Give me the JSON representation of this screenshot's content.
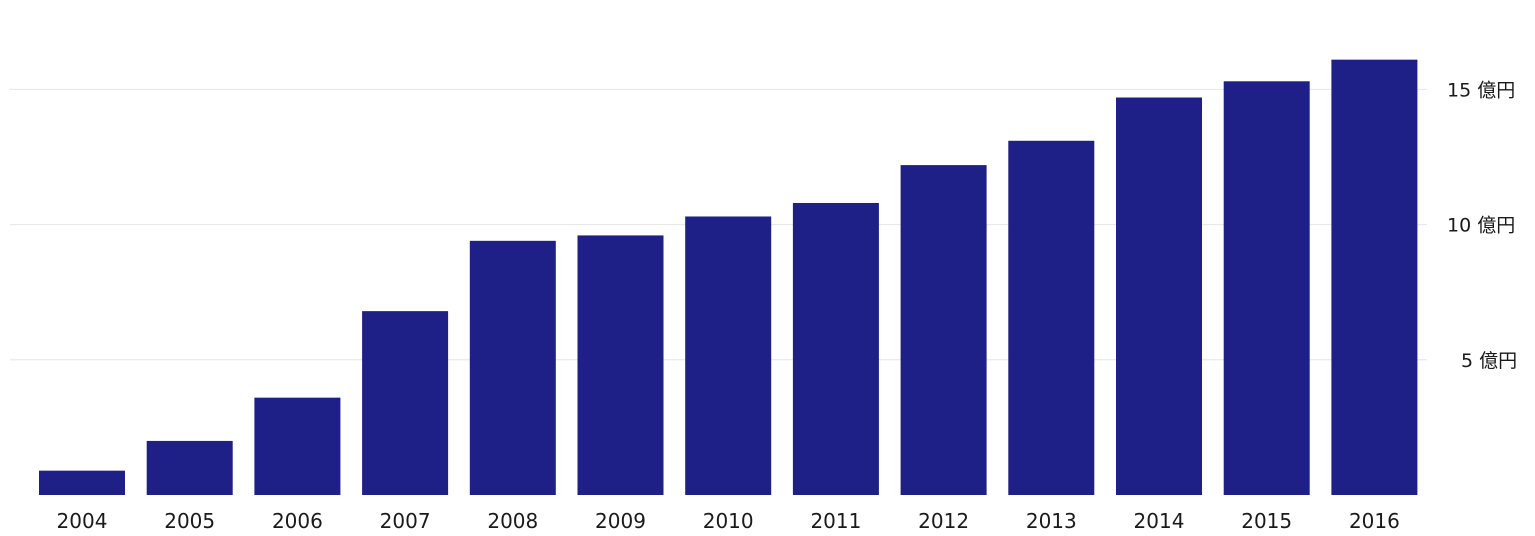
{
  "chart_data": {
    "type": "bar",
    "title": "",
    "xlabel": "",
    "ylabel": "",
    "categories": [
      "2004",
      "2005",
      "2006",
      "2007",
      "2008",
      "2009",
      "2010",
      "2011",
      "2012",
      "2013",
      "2014",
      "2015",
      "2016"
    ],
    "values": [
      0.9,
      2.0,
      3.6,
      6.8,
      9.4,
      9.6,
      10.3,
      10.8,
      12.2,
      13.1,
      14.7,
      15.3,
      16.1
    ],
    "ylim": [
      0,
      17
    ],
    "yticks": [
      5,
      10,
      15
    ],
    "ytick_unit": "億円",
    "yaxis_position": "right",
    "grid": true,
    "legend": "none",
    "bar_color": "#1e1f87",
    "grid_color": "#e6e6e6"
  }
}
